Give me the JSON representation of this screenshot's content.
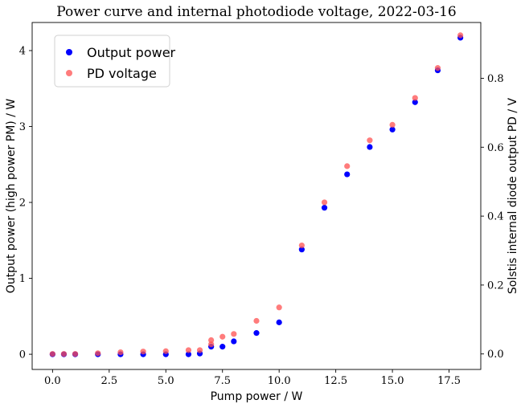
{
  "chart_data": {
    "type": "scatter",
    "title": "Power curve and internal photodiode voltage, 2022-03-16",
    "xlabel": "Pump power / W",
    "ylabel_left": "Output power (high power PM) / W",
    "ylabel_right": "Solstis internal diode output PD / V",
    "xlim": [
      -0.9,
      18.9
    ],
    "ylim_left": [
      -0.2,
      4.37
    ],
    "ylim_right": [
      -0.045,
      0.962
    ],
    "x_ticks": [
      "0.0",
      "2.5",
      "5.0",
      "7.5",
      "10.0",
      "12.5",
      "15.0",
      "17.5"
    ],
    "y_ticks_left": [
      "0",
      "1",
      "2",
      "3",
      "4"
    ],
    "y_ticks_right": [
      "0.0",
      "0.2",
      "0.4",
      "0.6",
      "0.8"
    ],
    "grid": false,
    "legend_position": "upper-left",
    "series": [
      {
        "name": "Output power",
        "axis": "left",
        "color": "#0000ff",
        "x": [
          0,
          0.5,
          1,
          2,
          3,
          4,
          5,
          6,
          6.5,
          7,
          7.5,
          8,
          9,
          10,
          11,
          12,
          13,
          14,
          15,
          16,
          17,
          18
        ],
        "y": [
          0,
          0,
          0,
          0,
          0,
          0,
          0,
          0,
          0.01,
          0.1,
          0.1,
          0.17,
          0.28,
          0.42,
          1.38,
          1.93,
          2.37,
          2.73,
          2.96,
          3.32,
          3.74,
          4.17
        ]
      },
      {
        "name": "PD voltage",
        "axis": "right",
        "color": "#ff5050",
        "x": [
          0,
          0.5,
          1,
          2,
          3,
          4,
          5,
          6,
          6.5,
          7,
          7,
          7.5,
          8,
          9,
          10,
          11,
          12,
          13,
          14,
          15,
          16,
          17,
          18
        ],
        "y": [
          0,
          0,
          0,
          0.002,
          0.005,
          0.007,
          0.008,
          0.011,
          0.011,
          0.04,
          0.028,
          0.05,
          0.058,
          0.096,
          0.135,
          0.315,
          0.44,
          0.545,
          0.62,
          0.665,
          0.743,
          0.83,
          0.925
        ]
      }
    ]
  }
}
